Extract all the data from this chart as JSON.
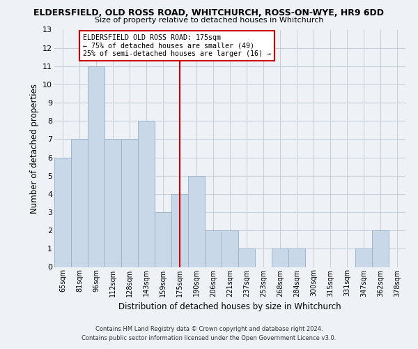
{
  "title": "ELDERSFIELD, OLD ROSS ROAD, WHITCHURCH, ROSS-ON-WYE, HR9 6DD",
  "subtitle": "Size of property relative to detached houses in Whitchurch",
  "xlabel": "Distribution of detached houses by size in Whitchurch",
  "ylabel": "Number of detached properties",
  "bin_labels": [
    "65sqm",
    "81sqm",
    "96sqm",
    "112sqm",
    "128sqm",
    "143sqm",
    "159sqm",
    "175sqm",
    "190sqm",
    "206sqm",
    "221sqm",
    "237sqm",
    "253sqm",
    "268sqm",
    "284sqm",
    "300sqm",
    "315sqm",
    "331sqm",
    "347sqm",
    "362sqm",
    "378sqm"
  ],
  "bar_heights": [
    6,
    7,
    11,
    7,
    7,
    8,
    3,
    4,
    5,
    2,
    2,
    1,
    0,
    1,
    1,
    0,
    0,
    0,
    1,
    2,
    0
  ],
  "bar_color": "#c8d8e8",
  "bar_edge_color": "#a0b4cc",
  "highlight_index": 7,
  "highlight_line_color": "#cc0000",
  "ylim": [
    0,
    13
  ],
  "yticks": [
    0,
    1,
    2,
    3,
    4,
    5,
    6,
    7,
    8,
    9,
    10,
    11,
    12,
    13
  ],
  "annotation_title": "ELDERSFIELD OLD ROSS ROAD: 175sqm",
  "annotation_line1": "← 75% of detached houses are smaller (49)",
  "annotation_line2": "25% of semi-detached houses are larger (16) →",
  "annotation_box_color": "#ffffff",
  "annotation_box_edge": "#cc0000",
  "footer1": "Contains HM Land Registry data © Crown copyright and database right 2024.",
  "footer2": "Contains public sector information licensed under the Open Government Licence v3.0.",
  "bg_color": "#eef2f7",
  "grid_color": "#c8d0dc"
}
